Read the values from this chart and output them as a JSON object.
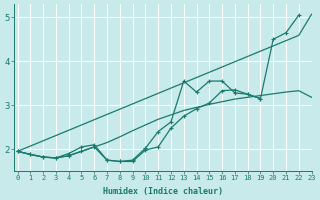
{
  "x_values": [
    0,
    1,
    2,
    3,
    4,
    5,
    6,
    7,
    8,
    9,
    10,
    11,
    12,
    13,
    14,
    15,
    16,
    17,
    18,
    19,
    20,
    21,
    22,
    23
  ],
  "line_straight": [
    1.95,
    2.07,
    2.19,
    2.31,
    2.43,
    2.55,
    2.67,
    2.79,
    2.91,
    3.03,
    3.15,
    3.27,
    3.39,
    3.51,
    3.63,
    3.75,
    3.87,
    3.99,
    4.11,
    4.23,
    4.35,
    4.47,
    4.59,
    5.07
  ],
  "line_smooth": [
    1.95,
    1.88,
    1.82,
    1.8,
    1.85,
    1.95,
    2.05,
    2.15,
    2.28,
    2.42,
    2.55,
    2.68,
    2.78,
    2.88,
    2.95,
    3.02,
    3.08,
    3.14,
    3.18,
    3.22,
    3.26,
    3.3,
    3.33,
    3.18
  ],
  "line_markers1": [
    1.95,
    1.88,
    1.82,
    1.8,
    1.85,
    1.95,
    2.05,
    1.75,
    1.72,
    1.72,
    1.98,
    2.05,
    2.48,
    2.75,
    2.92,
    3.05,
    3.33,
    3.35,
    3.25,
    3.15,
    null,
    null,
    null,
    null
  ],
  "line_markers2": [
    1.95,
    1.88,
    1.82,
    1.8,
    1.9,
    2.05,
    2.1,
    1.75,
    1.72,
    1.75,
    2.02,
    2.4,
    2.62,
    3.55,
    3.3,
    3.55,
    3.55,
    3.28,
    3.25,
    3.15,
    4.5,
    4.65,
    5.05,
    null
  ],
  "xlim": [
    -0.3,
    23
  ],
  "ylim": [
    1.5,
    5.3
  ],
  "yticks": [
    2,
    3,
    4,
    5
  ],
  "xticks": [
    0,
    1,
    2,
    3,
    4,
    5,
    6,
    7,
    8,
    9,
    10,
    11,
    12,
    13,
    14,
    15,
    16,
    17,
    18,
    19,
    20,
    21,
    22,
    23
  ],
  "xlabel": "Humidex (Indice chaleur)",
  "line_color": "#1a7a6e",
  "bg_color": "#c8eaea",
  "grid_color": "#b0d8d8",
  "text_color": "#1a7a6e",
  "tick_label_fontsize": 5.0,
  "xlabel_fontsize": 6.0,
  "marker_size": 2.0,
  "line_width": 0.9
}
